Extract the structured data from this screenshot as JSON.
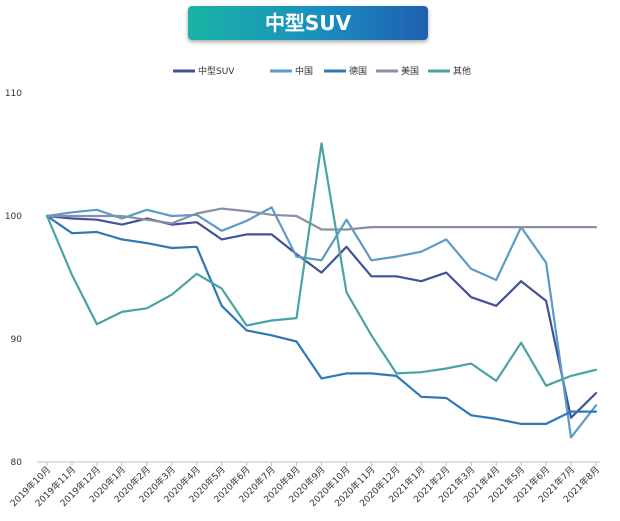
{
  "chart_data": {
    "type": "line",
    "title": "中型SUV",
    "xlabel": "",
    "ylabel": "",
    "ylim": [
      80,
      110
    ],
    "yticks": [
      80,
      90,
      100,
      110
    ],
    "grid": false,
    "legend_position": "top",
    "categories": [
      "2019年10月",
      "2019年11月",
      "2019年12月",
      "2020年1月",
      "2020年2月",
      "2020年3月",
      "2020年4月",
      "2020年5月",
      "2020年6月",
      "2020年7月",
      "2020年8月",
      "2020年9月",
      "2020年10月",
      "2020年11月",
      "2020年12月",
      "2021年1月",
      "2021年2月",
      "2021年3月",
      "2021年4月",
      "2021年5月",
      "2021年6月",
      "2021年7月",
      "2021年8月"
    ],
    "series": [
      {
        "name": "中型SUV",
        "color": "#44509a",
        "values": [
          100,
          99.8,
          99.7,
          99.3,
          99.8,
          99.3,
          99.5,
          98.1,
          98.5,
          98.5,
          96.9,
          95.4,
          97.5,
          95.1,
          95.1,
          94.7,
          95.4,
          93.4,
          92.7,
          94.7,
          93.1,
          83.6,
          85.6
        ]
      },
      {
        "name": "中国",
        "color": "#5b9bc8",
        "values": [
          100,
          100.3,
          100.5,
          99.8,
          100.5,
          100.0,
          100.1,
          98.8,
          99.6,
          100.7,
          96.7,
          96.4,
          99.7,
          96.4,
          96.7,
          97.1,
          98.1,
          95.7,
          94.8,
          99.1,
          96.2,
          82.0,
          84.6
        ]
      },
      {
        "name": "德国",
        "color": "#2e78b7",
        "values": [
          100,
          98.6,
          98.7,
          98.1,
          97.8,
          97.4,
          97.5,
          92.7,
          90.7,
          90.3,
          89.8,
          86.8,
          87.2,
          87.2,
          87.0,
          85.3,
          85.2,
          83.8,
          83.5,
          83.1,
          83.1,
          84.1,
          84.1
        ]
      },
      {
        "name": "美国",
        "color": "#8a8fa8",
        "values": [
          100,
          100,
          100,
          100,
          99.7,
          99.4,
          100.2,
          100.6,
          100.4,
          100.1,
          100.0,
          98.9,
          98.9,
          99.1,
          99.1,
          99.1,
          99.1,
          99.1,
          99.1,
          99.1,
          99.1,
          99.1,
          99.1
        ]
      },
      {
        "name": "其他",
        "color": "#4aa3a3",
        "values": [
          100,
          95.2,
          91.2,
          92.2,
          92.5,
          93.6,
          95.3,
          94.1,
          91.1,
          91.5,
          91.7,
          105.9,
          93.8,
          90.3,
          87.2,
          87.3,
          87.6,
          88.0,
          86.6,
          89.7,
          86.2,
          87.0,
          87.5
        ]
      }
    ]
  }
}
